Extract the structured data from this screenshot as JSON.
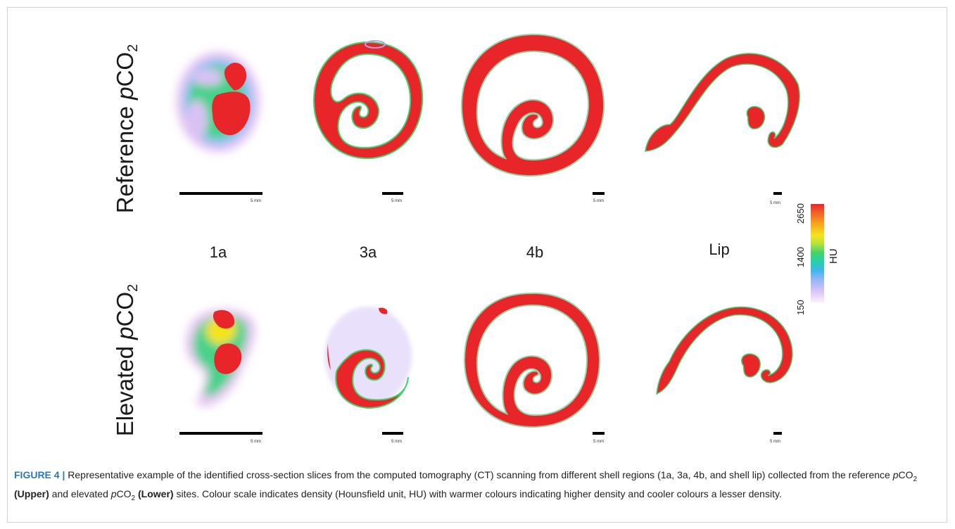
{
  "figure": {
    "rows": [
      {
        "label_prefix": "Reference ",
        "label_var": "p",
        "label_main": "CO",
        "label_sub": "2"
      },
      {
        "label_prefix": "Elevated ",
        "label_var": "p",
        "label_main": "CO",
        "label_sub": "2"
      }
    ],
    "columns": [
      "1a",
      "3a",
      "4b",
      "Lip"
    ],
    "scale_label": "5 mm",
    "colorbar": {
      "title": "HU",
      "ticks": [
        "2650",
        "1400",
        "150"
      ],
      "colors": [
        "#e8262a",
        "#f7a51c",
        "#f4e41c",
        "#3ed46e",
        "#46b4f0",
        "#d8c2f4",
        "#fbf1fc"
      ]
    }
  },
  "caption": {
    "figure_label": "FIGURE 4 |",
    "text_1": " Representative example of the identified cross-section slices from the computed tomography (CT) scanning from different shell regions (1a, 3a, 4b, and shell lip) collected from the reference ",
    "p1": "p",
    "co1": "CO",
    "sub1": "2",
    "upper": " (Upper)",
    "text_2": " and elevated ",
    "p2": "p",
    "co2": "CO",
    "sub2": "2",
    "lower": " (Lower)",
    "text_3": " sites. Colour scale indicates density (Hounsfield unit, HU) with warmer colours indicating higher density and cooler colours a lesser density."
  }
}
